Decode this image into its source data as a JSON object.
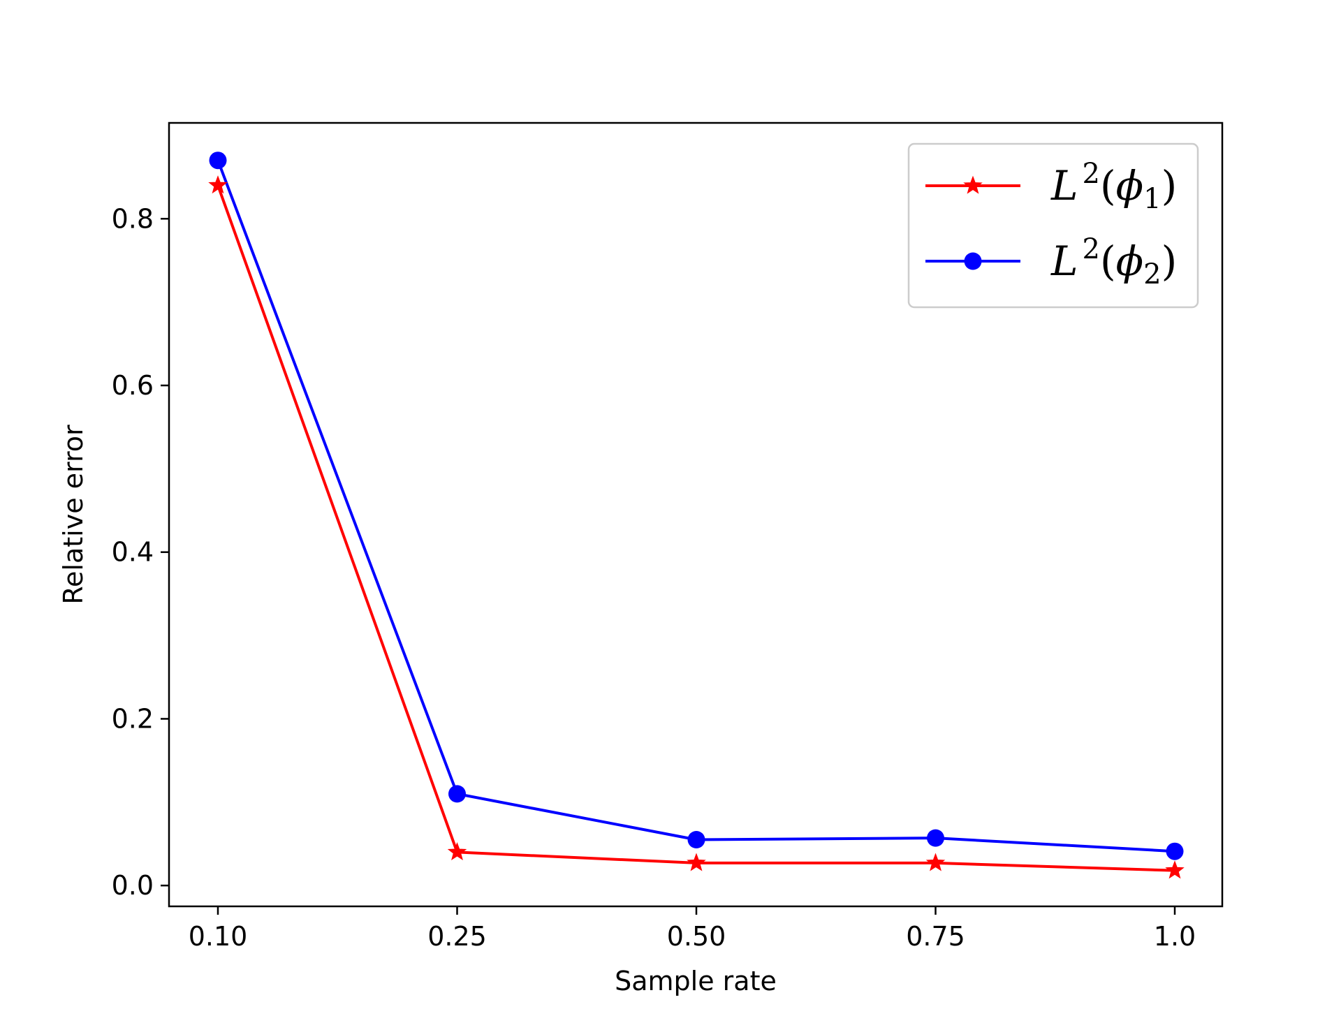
{
  "chart_data": {
    "type": "line",
    "title": "",
    "xlabel": "Sample rate",
    "ylabel": "Relative error",
    "categories": [
      "0.10",
      "0.25",
      "0.50",
      "0.75",
      "1.0"
    ],
    "yticks": [
      "0.0",
      "0.2",
      "0.4",
      "0.6",
      "0.8"
    ],
    "ylim": [
      -0.025,
      0.915
    ],
    "grid": false,
    "legend_position": "top-right",
    "series": [
      {
        "name": "L^2(phi_1)",
        "legend_base": "L",
        "legend_sup": "2",
        "legend_open": "(",
        "legend_phi": "ϕ",
        "legend_sub": "1",
        "legend_close": ")",
        "color": "#ff0000",
        "marker": "star",
        "values": [
          0.84,
          0.04,
          0.027,
          0.027,
          0.018
        ]
      },
      {
        "name": "L^2(phi_2)",
        "legend_base": "L",
        "legend_sup": "2",
        "legend_open": "(",
        "legend_phi": "ϕ",
        "legend_sub": "2",
        "legend_close": ")",
        "color": "#0000ff",
        "marker": "circle",
        "values": [
          0.87,
          0.11,
          0.055,
          0.057,
          0.041
        ]
      }
    ]
  }
}
